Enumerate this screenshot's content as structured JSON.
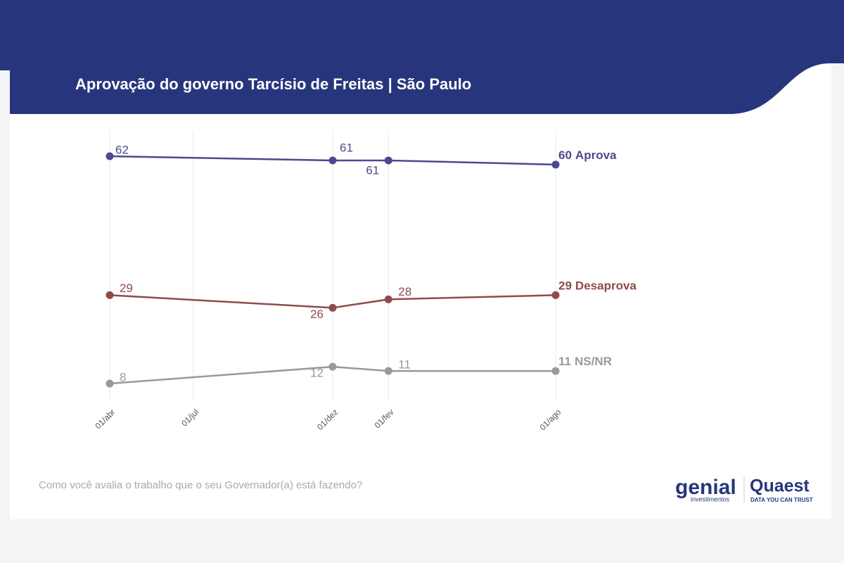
{
  "header": {
    "title": "Aprovação do governo Tarcísio de Freitas | São Paulo"
  },
  "chart_data": {
    "type": "line",
    "x": [
      0,
      8,
      10,
      16
    ],
    "xlim": [
      0,
      16
    ],
    "xticks": [
      {
        "value": 0,
        "label": "01/abr"
      },
      {
        "value": 3,
        "label": "01/jul"
      },
      {
        "value": 8,
        "label": "01/dez"
      },
      {
        "value": 10,
        "label": "01/fev"
      },
      {
        "value": 16,
        "label": "01/ago"
      }
    ],
    "ylim": [
      5,
      64
    ],
    "grid": true,
    "series": [
      {
        "name": "Aprova",
        "color": "#4b4a8e",
        "values": [
          62,
          61,
          61,
          60
        ]
      },
      {
        "name": "Desaprova",
        "color": "#8e4b4b",
        "values": [
          29,
          26,
          28,
          29
        ]
      },
      {
        "name": "NS/NR",
        "color": "#999999",
        "values": [
          8,
          12,
          11,
          11
        ]
      }
    ]
  },
  "footer": {
    "question": "Como você avalia o trabalho que o seu Governador(a) está fazendo?",
    "logo1": "genial",
    "logo1_sub": "investimentos",
    "logo2": "Quaest",
    "logo2_sub": "DATA YOU CAN TRUST"
  }
}
